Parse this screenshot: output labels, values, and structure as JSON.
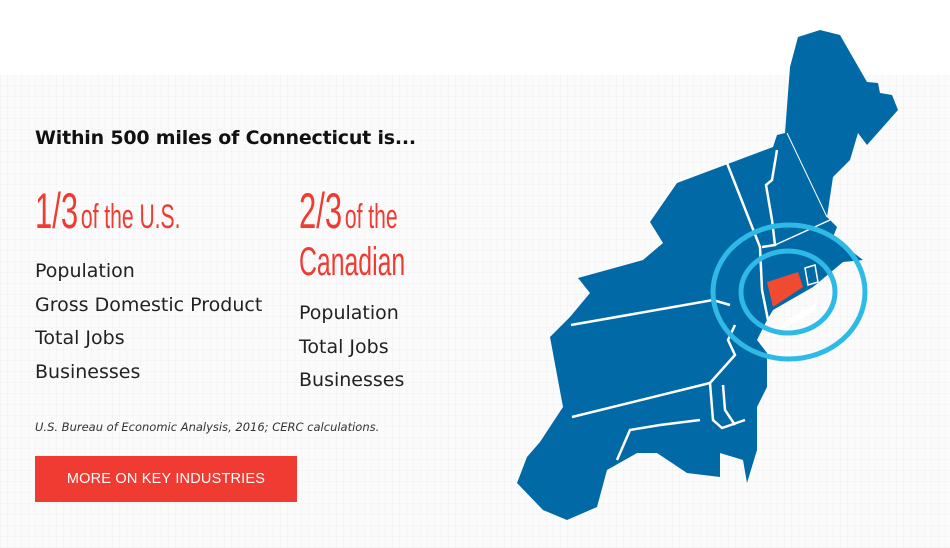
{
  "heading": "Within 500 miles of Connecticut is...",
  "us": {
    "fraction": "1/3",
    "label": "of the U.S.",
    "items": [
      "Population",
      "Gross Domestic Product",
      "Total Jobs",
      "Businesses"
    ]
  },
  "canada": {
    "fraction": "2/3",
    "label_line1": "of the",
    "label_line2": "Canadian",
    "items": [
      "Population",
      "Total Jobs",
      "Businesses"
    ]
  },
  "source": "U.S. Bureau of Economic Analysis, 2016; CERC calculations.",
  "button_label": "MORE ON KEY INDUSTRIES",
  "colors": {
    "accent_red": "#ef3b32",
    "map_blue": "#0069a6",
    "ring_blue": "#2fb9e6",
    "connecticut": "#f04a30"
  }
}
